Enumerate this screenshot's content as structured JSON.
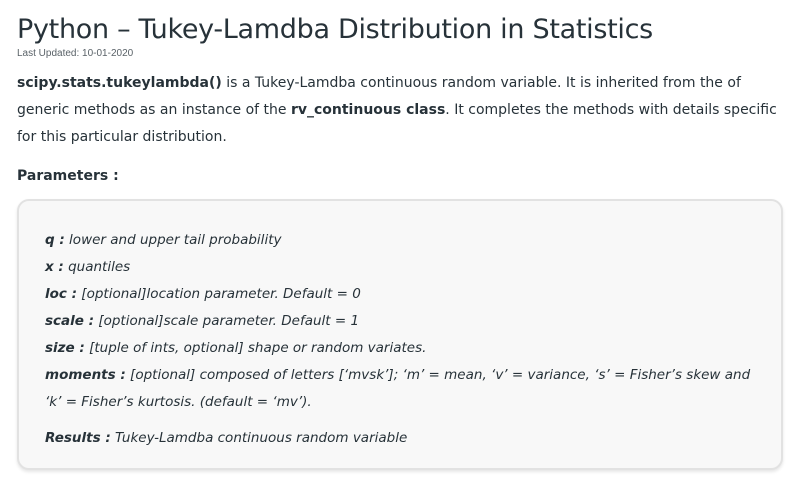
{
  "article": {
    "title": "Python – Tukey-Lamdba Distribution in Statistics",
    "last_updated": "Last Updated: 10-01-2020",
    "intro": {
      "code1": "scipy.stats.tukeylambda()",
      "text1": " is a Tukey-Lamdba continuous random variable. It is inherited from the of generic methods as an instance of the ",
      "code2": "rv_continuous class",
      "text2": ". It completes the methods with details specific for this particular distribution."
    },
    "parameters_heading": "Parameters :",
    "parameters": [
      {
        "name": "q :",
        "desc": " lower and upper tail probability"
      },
      {
        "name": "x :",
        "desc": " quantiles"
      },
      {
        "name": "loc :",
        "desc": " [optional]location parameter. Default = 0"
      },
      {
        "name": "scale :",
        "desc": " [optional]scale parameter. Default = 1"
      },
      {
        "name": "size :",
        "desc": " [tuple of ints, optional] shape or random variates."
      },
      {
        "name": "moments :",
        "desc": " [optional] composed of letters [‘mvsk’]; ‘m’ = mean, ‘v’ = variance, ‘s’ = Fisher’s skew and ‘k’ = Fisher’s kurtosis. (default = ‘mv’)."
      }
    ],
    "results": {
      "name": "Results :",
      "desc": " Tukey-Lamdba continuous random variable"
    }
  }
}
